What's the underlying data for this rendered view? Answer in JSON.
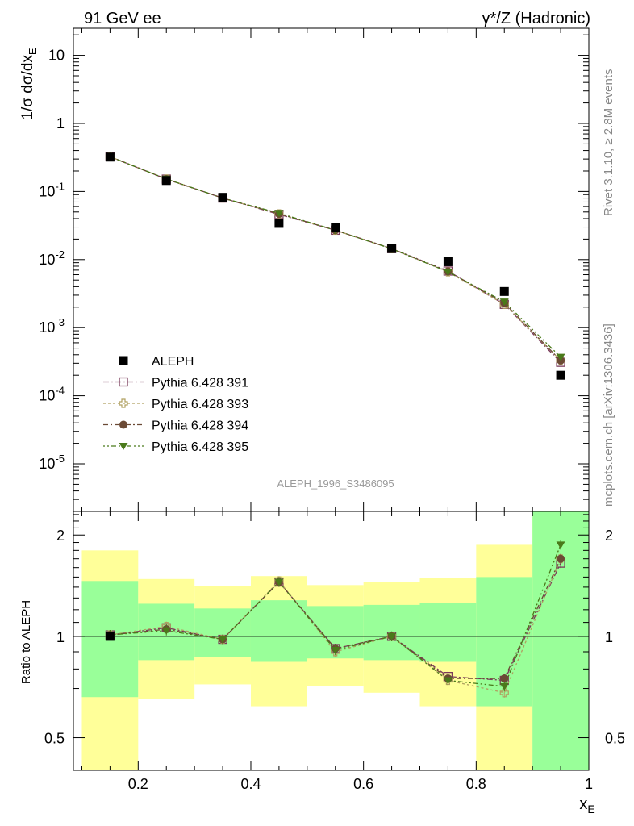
{
  "header": {
    "left": "91 GeV ee",
    "right": "γ*/Z (Hadronic)"
  },
  "watermark": "ALEPH_1996_S3486095",
  "side_labels": {
    "rivet": "Rivet 3.1.10, ≥ 2.8M events",
    "mcplots": "mcplots.cern.ch [arXiv:1306.3436]"
  },
  "ratio_ylabel": "Ratio to ALEPH",
  "colors": {
    "data": "#000000",
    "p391": "#7a3a5a",
    "p393": "#b0a060",
    "p394": "#6b4a35",
    "p395": "#4a7a1a",
    "band_inner": "#99ff99",
    "band_outer": "#ffff99"
  },
  "chart_data": [
    {
      "type": "scatter",
      "title": "",
      "xlabel": "x_E",
      "ylabel": "1/σ dσ/dx_E",
      "xlim": [
        0.085,
        1.0
      ],
      "ylim": [
        2e-06,
        25
      ],
      "log_y": true,
      "legend": "lower-left",
      "x": [
        0.15,
        0.25,
        0.35,
        0.45,
        0.55,
        0.65,
        0.75,
        0.85,
        0.95
      ],
      "x_tick_labels": [
        "0.2",
        "0.4",
        "0.6",
        "0.8",
        "1"
      ],
      "y_tick_labels": [
        "10",
        "1",
        "10^-1",
        "10^-2",
        "10^-3",
        "10^-4",
        "10^-5"
      ],
      "series": [
        {
          "name": "ALEPH",
          "values": [
            0.32,
            0.145,
            0.082,
            0.034,
            0.03,
            0.0145,
            0.0093,
            0.0034,
            0.0002
          ]
        },
        {
          "name": "Pythia 6.428 391",
          "values": [
            0.325,
            0.152,
            0.08,
            0.046,
            0.027,
            0.0145,
            0.0068,
            0.0022,
            0.00031
          ]
        },
        {
          "name": "Pythia 6.428 393",
          "values": [
            0.325,
            0.153,
            0.08,
            0.047,
            0.027,
            0.0144,
            0.0066,
            0.0022,
            0.00033
          ]
        },
        {
          "name": "Pythia 6.428 394",
          "values": [
            0.325,
            0.152,
            0.08,
            0.047,
            0.027,
            0.0145,
            0.0067,
            0.0023,
            0.00033
          ]
        },
        {
          "name": "Pythia 6.428 395",
          "values": [
            0.325,
            0.153,
            0.08,
            0.048,
            0.027,
            0.0144,
            0.0066,
            0.0024,
            0.00037
          ]
        }
      ]
    },
    {
      "type": "line",
      "title": "",
      "xlabel": "x_E",
      "ylabel": "Ratio to ALEPH",
      "xlim": [
        0.085,
        1.0
      ],
      "ylim": [
        0.4,
        2.35
      ],
      "x": [
        0.15,
        0.25,
        0.35,
        0.45,
        0.55,
        0.65,
        0.75,
        0.85,
        0.95
      ],
      "x_tick_labels": [
        "0.2",
        "0.4",
        "0.6",
        "0.8",
        "1"
      ],
      "y_tick_labels": [
        "0.5",
        "1",
        "2"
      ],
      "bins": [
        [
          0.1,
          0.2
        ],
        [
          0.2,
          0.3
        ],
        [
          0.3,
          0.4
        ],
        [
          0.4,
          0.5
        ],
        [
          0.5,
          0.6
        ],
        [
          0.6,
          0.7
        ],
        [
          0.7,
          0.8
        ],
        [
          0.8,
          0.9
        ],
        [
          0.9,
          1.0
        ]
      ],
      "band_inner": [
        [
          0.66,
          1.46
        ],
        [
          0.85,
          1.25
        ],
        [
          0.87,
          1.21
        ],
        [
          0.84,
          1.28
        ],
        [
          0.86,
          1.23
        ],
        [
          0.85,
          1.24
        ],
        [
          0.84,
          1.26
        ],
        [
          0.62,
          1.5
        ],
        [
          0.4,
          2.35
        ]
      ],
      "band_outer": [
        [
          0.4,
          1.8
        ],
        [
          0.65,
          1.48
        ],
        [
          0.72,
          1.41
        ],
        [
          0.62,
          1.51
        ],
        [
          0.71,
          1.42
        ],
        [
          0.68,
          1.45
        ],
        [
          0.62,
          1.49
        ],
        [
          0.4,
          1.87
        ],
        [
          0.4,
          2.35
        ]
      ],
      "series": [
        {
          "name": "Pythia 6.428 391",
          "values": [
            1.01,
            1.06,
            0.98,
            1.45,
            0.92,
            1.0,
            0.76,
            0.74,
            1.65
          ]
        },
        {
          "name": "Pythia 6.428 393",
          "values": [
            1.01,
            1.07,
            0.98,
            1.46,
            0.9,
            1.0,
            0.74,
            0.68,
            1.7
          ]
        },
        {
          "name": "Pythia 6.428 394",
          "values": [
            1.01,
            1.05,
            0.98,
            1.45,
            0.92,
            1.0,
            0.75,
            0.75,
            1.7
          ]
        },
        {
          "name": "Pythia 6.428 395",
          "values": [
            1.01,
            1.04,
            0.98,
            1.45,
            0.91,
            1.0,
            0.74,
            0.71,
            1.87
          ]
        }
      ]
    }
  ]
}
